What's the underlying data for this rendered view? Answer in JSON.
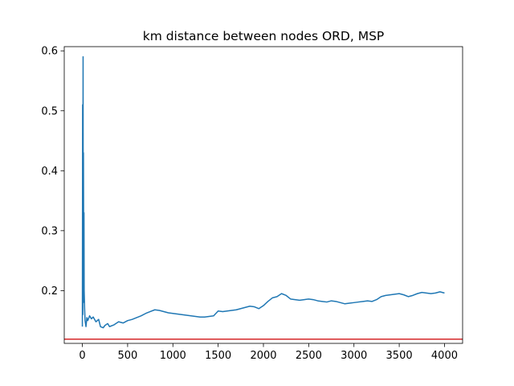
{
  "chart_data": {
    "type": "line",
    "title": "km distance between nodes ORD, MSP",
    "xlabel": "",
    "ylabel": "",
    "xlim": [
      -200,
      4200
    ],
    "ylim": [
      0.112,
      0.607
    ],
    "xticks": [
      0,
      500,
      1000,
      1500,
      2000,
      2500,
      3000,
      3500,
      4000
    ],
    "yticks": [
      0.2,
      0.3,
      0.4,
      0.5,
      0.6
    ],
    "xtick_labels": [
      "0",
      "500",
      "1000",
      "1500",
      "2000",
      "2500",
      "3000",
      "3500",
      "4000"
    ],
    "ytick_labels": [
      "0.2",
      "0.3",
      "0.4",
      "0.5",
      "0.6"
    ],
    "grid": false,
    "series": [
      {
        "color": "#1f77b4",
        "x": [
          0,
          3,
          5,
          8,
          10,
          12,
          15,
          18,
          20,
          25,
          30,
          40,
          50,
          60,
          80,
          100,
          120,
          150,
          180,
          200,
          230,
          250,
          280,
          300,
          350,
          400,
          450,
          500,
          550,
          600,
          650,
          700,
          750,
          800,
          850,
          900,
          950,
          1000,
          1050,
          1100,
          1150,
          1200,
          1250,
          1300,
          1350,
          1400,
          1450,
          1500,
          1550,
          1600,
          1650,
          1700,
          1750,
          1800,
          1850,
          1900,
          1950,
          2000,
          2050,
          2100,
          2150,
          2200,
          2250,
          2300,
          2350,
          2400,
          2450,
          2500,
          2550,
          2600,
          2650,
          2700,
          2750,
          2800,
          2850,
          2900,
          2950,
          3000,
          3050,
          3100,
          3150,
          3200,
          3250,
          3300,
          3350,
          3400,
          3450,
          3500,
          3550,
          3600,
          3650,
          3700,
          3750,
          3800,
          3850,
          3900,
          3950,
          4000
        ],
        "y": [
          0.14,
          0.51,
          0.16,
          0.59,
          0.18,
          0.43,
          0.24,
          0.33,
          0.2,
          0.17,
          0.15,
          0.14,
          0.155,
          0.15,
          0.158,
          0.153,
          0.156,
          0.148,
          0.152,
          0.14,
          0.138,
          0.142,
          0.145,
          0.14,
          0.143,
          0.148,
          0.146,
          0.15,
          0.152,
          0.155,
          0.158,
          0.162,
          0.165,
          0.168,
          0.167,
          0.165,
          0.163,
          0.162,
          0.161,
          0.16,
          0.159,
          0.158,
          0.157,
          0.156,
          0.156,
          0.157,
          0.158,
          0.166,
          0.165,
          0.166,
          0.167,
          0.168,
          0.17,
          0.172,
          0.174,
          0.173,
          0.17,
          0.175,
          0.182,
          0.188,
          0.19,
          0.195,
          0.192,
          0.186,
          0.185,
          0.184,
          0.185,
          0.186,
          0.185,
          0.183,
          0.182,
          0.181,
          0.183,
          0.182,
          0.18,
          0.178,
          0.179,
          0.18,
          0.181,
          0.182,
          0.183,
          0.182,
          0.185,
          0.19,
          0.192,
          0.193,
          0.194,
          0.195,
          0.193,
          0.19,
          0.192,
          0.195,
          0.197,
          0.196,
          0.195,
          0.196,
          0.198,
          0.196
        ]
      }
    ],
    "hlines": [
      {
        "y": 0.119,
        "color": "#d62728"
      }
    ]
  }
}
